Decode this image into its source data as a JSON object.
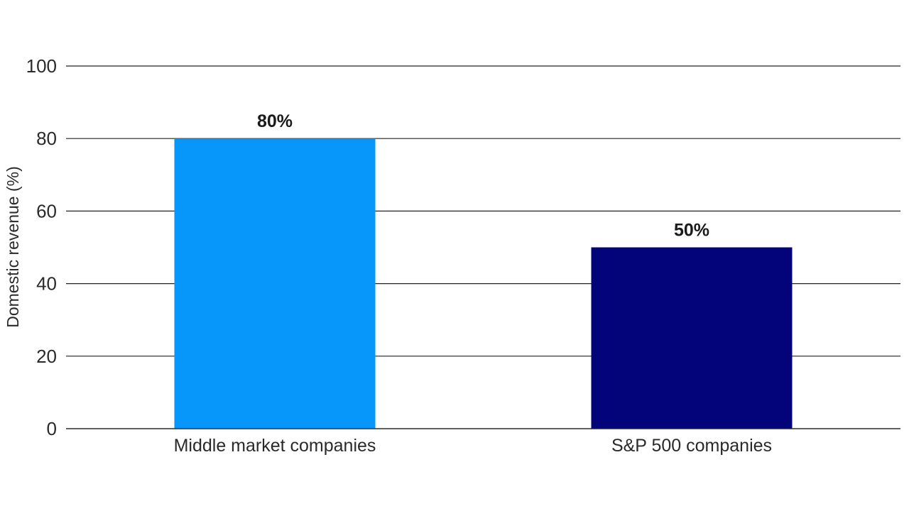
{
  "chart_data": {
    "type": "bar",
    "title": "",
    "xlabel": "",
    "ylabel": "Domestic revenue (%)",
    "ylim": [
      0,
      100
    ],
    "yticks": [
      0,
      20,
      40,
      60,
      80,
      100
    ],
    "grid": true,
    "categories": [
      "Middle market companies",
      "S&P 500 companies"
    ],
    "values": [
      80,
      50
    ],
    "data_labels": [
      "80%",
      "50%"
    ],
    "colors": [
      "#0796F9",
      "#03037A"
    ]
  }
}
